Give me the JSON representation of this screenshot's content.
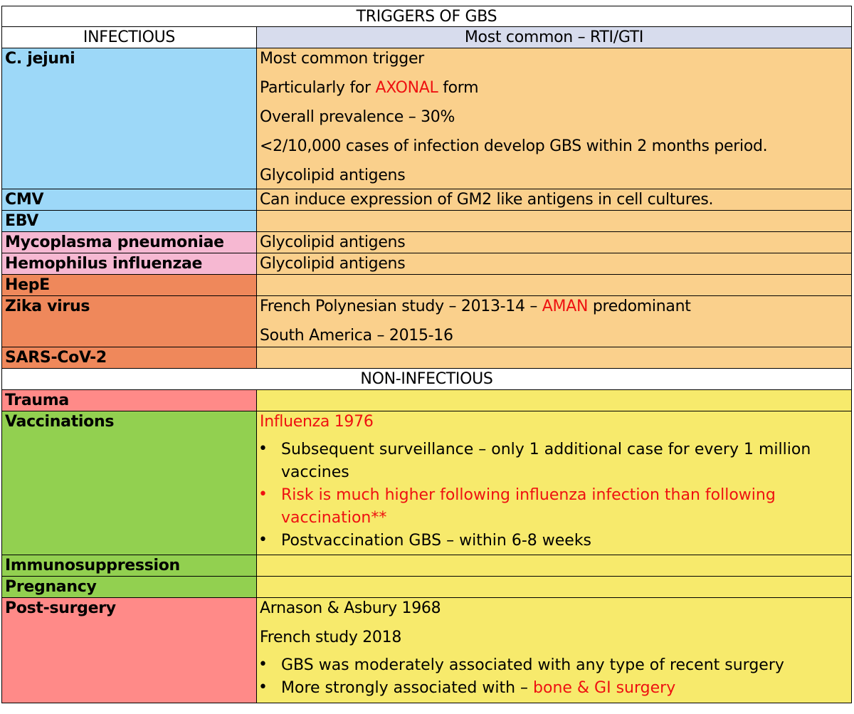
{
  "title": "TRIGGERS OF GBS",
  "infectious": {
    "header": "INFECTIOUS",
    "header_note": "Most common – RTI/GTI",
    "rows": [
      {
        "name": "C. jejuni",
        "lines": [
          "Most common trigger",
          [
            "Particularly for ",
            "AXONAL",
            " form"
          ],
          "Overall prevalence – 30%",
          "<2/10,000 cases of infection develop GBS within 2 months period.",
          "Glycolipid antigens"
        ]
      },
      {
        "name": "CMV",
        "lines": [
          "Can induce expression of GM2 like antigens in cell cultures."
        ]
      },
      {
        "name": "EBV",
        "lines": []
      },
      {
        "name": "Mycoplasma pneumoniae",
        "lines": [
          "Glycolipid antigens"
        ]
      },
      {
        "name": "Hemophilus influenzae",
        "lines": [
          "Glycolipid antigens"
        ]
      },
      {
        "name": "HepE",
        "lines": []
      },
      {
        "name": "Zika virus",
        "lines": [
          [
            "French Polynesian study – 2013-14 – ",
            "AMAN",
            " predominant"
          ],
          "South America – 2015-16"
        ]
      },
      {
        "name": "SARS-CoV-2",
        "lines": []
      }
    ]
  },
  "non_infectious": {
    "header": "NON-INFECTIOUS",
    "rows": [
      {
        "name": "Trauma"
      },
      {
        "name": "Vaccinations",
        "intro": "Influenza 1976",
        "bullets": [
          {
            "text": "Subsequent surveillance – only 1 additional case for every 1 million vaccines",
            "red": false
          },
          {
            "text": "Risk is much higher following influenza infection than following vaccination**",
            "red": true
          },
          {
            "text": "Postvaccination GBS – within 6-8 weeks",
            "red": false
          }
        ]
      },
      {
        "name": "Immunosuppression"
      },
      {
        "name": "Pregnancy"
      },
      {
        "name": "Post-surgery",
        "lines": [
          "Arnason & Asbury 1968",
          "French study 2018"
        ],
        "bullets": [
          {
            "text": "GBS was moderately associated with any type of recent surgery"
          },
          {
            "pre": "More strongly associated with  – ",
            "red_text": "bone & GI surgery"
          }
        ]
      }
    ]
  },
  "colors": {
    "title_bg": "#ffffff",
    "header_note_bg": "#d7dced",
    "blue": "#9dd8f8",
    "orange": "#fad08c",
    "pink": "#f6b8d2",
    "salmon": "#ef885b",
    "rose": "#ff8a88",
    "green": "#92d050",
    "yellow": "#f7ea6c",
    "red_text": "#ee1111"
  }
}
